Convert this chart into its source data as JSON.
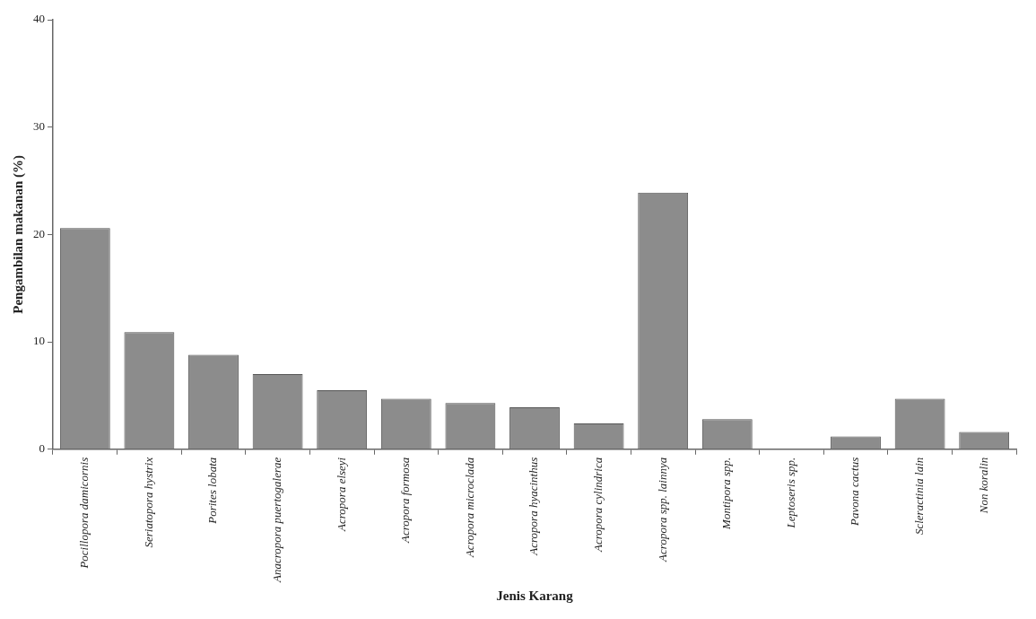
{
  "chart_data": {
    "type": "bar",
    "xlabel": "Jenis Karang",
    "ylabel": "Pengambilan makanan (%)",
    "categories": [
      "Pocillopora damicornis",
      "Seriatopora hystrix",
      "Porites lobata",
      "Anacropora puertogalerae",
      "Acropora elseyi",
      "Acropora formosa",
      "Acropora microclada",
      "Acropora hyacinthus",
      "Acropora cylindrica",
      "Acropora spp. lainnya",
      "Montipora spp.",
      "Leptoseris spp.",
      "Pavona cactus",
      "Scleractinia lain",
      "Non koralin"
    ],
    "values": [
      20.6,
      10.9,
      8.8,
      7.0,
      5.5,
      4.7,
      4.3,
      3.9,
      2.4,
      23.9,
      2.8,
      0,
      1.2,
      4.7,
      1.6
    ],
    "color": "#8c8c8c",
    "ylim": [
      0,
      40
    ],
    "yticks": [
      0,
      10,
      20,
      30,
      40
    ],
    "grid": false,
    "legend": false
  }
}
